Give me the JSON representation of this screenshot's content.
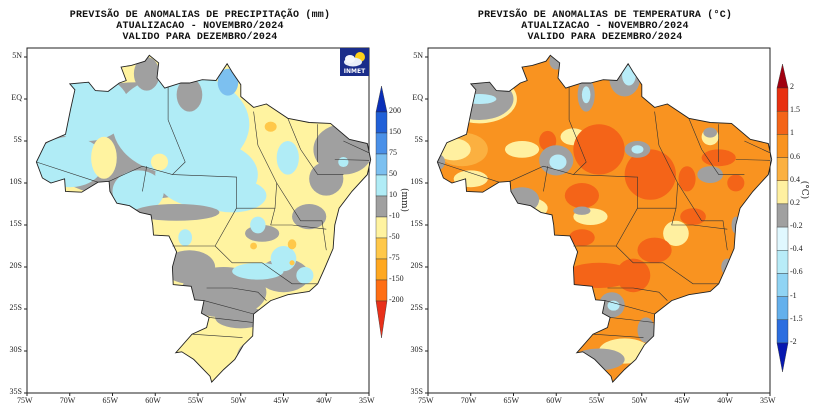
{
  "precip_map": {
    "title_lines": [
      "PREVISÃO DE ANOMALIAS DE PRECIPITAÇÃO (mm)",
      "ATUALIZACAO - NOVEMBRO/2024",
      "VALIDO PARA DEZEMBRO/2024"
    ],
    "logo_text": "INMET",
    "unit": "(mm)",
    "colorbar": {
      "labels": [
        "200",
        "150",
        "75",
        "50",
        "10",
        "-10",
        "-50",
        "-75",
        "-150",
        "-200"
      ],
      "colors": [
        "#0a2fb8",
        "#2060d8",
        "#4a90e8",
        "#7cc0f0",
        "#b0ecf6",
        "#a0a0a0",
        "#fff3a0",
        "#ffc84a",
        "#ffa820",
        "#ff6e14",
        "#e8301a"
      ]
    }
  },
  "temp_map": {
    "title_lines": [
      "PREVISÃO DE ANOMALIAS DE TEMPERATURA (°C)",
      "ATUALIZACAO - NOVEMBRO/2024",
      "VALIDO PARA DEZEMBRO/2024"
    ],
    "unit": "(°C)",
    "colorbar": {
      "labels": [
        "2",
        "1.5",
        "1",
        "0.6",
        "0.4",
        "0.2",
        "-0.2",
        "-0.4",
        "-0.6",
        "-1",
        "-1.5",
        "-2"
      ],
      "colors": [
        "#a00010",
        "#e83010",
        "#f46418",
        "#f99320",
        "#fbb040",
        "#fff0a0",
        "#a0a0a0",
        "#e0f8ff",
        "#b8ecf8",
        "#90d4f4",
        "#64b0ec",
        "#2c6ee0",
        "#0818b0"
      ]
    }
  },
  "axes": {
    "x_labels": [
      "75W",
      "70W",
      "65W",
      "60W",
      "55W",
      "50W",
      "45W",
      "40W",
      "35W"
    ],
    "y_labels": [
      "5N",
      "EQ",
      "5S",
      "10S",
      "15S",
      "20S",
      "25S",
      "30S",
      "35S"
    ]
  }
}
